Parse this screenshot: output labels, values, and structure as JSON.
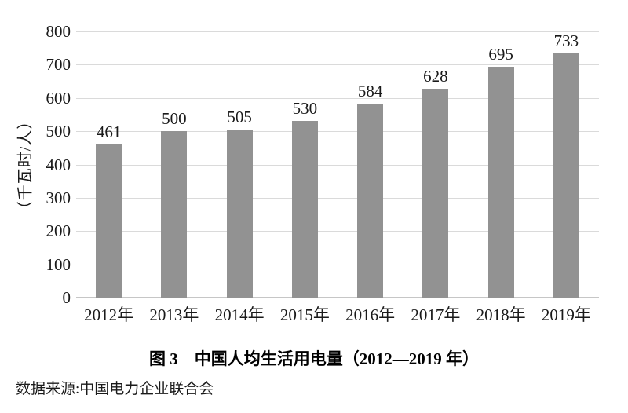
{
  "chart_data": {
    "type": "bar",
    "title": "图 3　中国人均生活用电量（2012—2019 年）",
    "ylabel": "（千瓦时/人）",
    "xlabel": "",
    "categories": [
      "2012年",
      "2013年",
      "2014年",
      "2015年",
      "2016年",
      "2017年",
      "2018年",
      "2019年"
    ],
    "values": [
      461,
      500,
      505,
      530,
      584,
      628,
      695,
      733
    ],
    "ylim": [
      0,
      800
    ],
    "yticks": [
      0,
      100,
      200,
      300,
      400,
      500,
      600,
      700,
      800
    ],
    "grid": true,
    "legend_position": "none",
    "show_value_labels": true,
    "bar_color": "#929292",
    "gridline_color": "#dadada",
    "axisline_color": "#c6c6c6",
    "text_color": "#1a1a1a"
  },
  "source": "数据来源:中国电力企业联合会"
}
